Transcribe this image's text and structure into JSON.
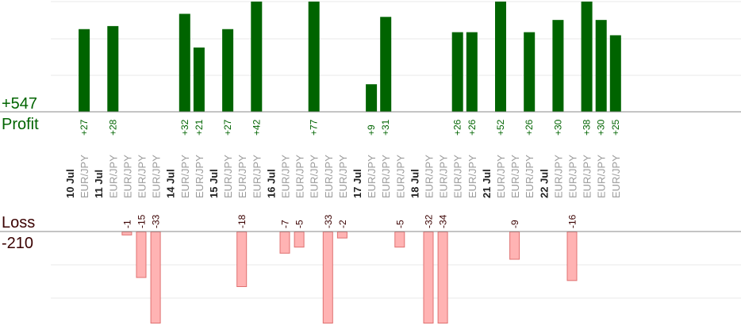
{
  "chart_data": {
    "type": "bar",
    "colors": {
      "profit_fill": "#006400",
      "loss_fill": "#ffb3b3",
      "loss_stroke": "#e07070",
      "profit_text": "#006400",
      "loss_text": "#3a0000",
      "axis": "#888888",
      "grid": "#e8e8e8",
      "day_label": "#222222",
      "pair_label": "#9a9a9a"
    },
    "profit_total": "+547",
    "profit_label": "Profit",
    "loss_label": "Loss",
    "loss_total": "-210",
    "profit_scale_max": 36,
    "loss_scale_max": 30,
    "columns": [
      {
        "day": "10 Jul",
        "pair": "",
        "value": null,
        "label": ""
      },
      {
        "day": "",
        "pair": "EUR/JPY",
        "value": 27,
        "label": "+27"
      },
      {
        "day": "11 Jul",
        "pair": "",
        "value": null,
        "label": ""
      },
      {
        "day": "",
        "pair": "EUR/JPY",
        "value": 28,
        "label": "+28"
      },
      {
        "day": "",
        "pair": "EUR/JPY",
        "value": -1,
        "label": "-1"
      },
      {
        "day": "",
        "pair": "EUR/JPY",
        "value": -15,
        "label": "-15"
      },
      {
        "day": "",
        "pair": "EUR/JPY",
        "value": -33,
        "label": "-33"
      },
      {
        "day": "14 Jul",
        "pair": "",
        "value": null,
        "label": ""
      },
      {
        "day": "",
        "pair": "EUR/JPY",
        "value": 32,
        "label": "+32"
      },
      {
        "day": "",
        "pair": "EUR/JPY",
        "value": 21,
        "label": "+21"
      },
      {
        "day": "15 Jul",
        "pair": "",
        "value": null,
        "label": ""
      },
      {
        "day": "",
        "pair": "EUR/JPY",
        "value": 27,
        "label": "+27"
      },
      {
        "day": "",
        "pair": "EUR/JPY",
        "value": -18,
        "label": "-18"
      },
      {
        "day": "",
        "pair": "EUR/JPY",
        "value": 42,
        "label": "+42"
      },
      {
        "day": "16 Jul",
        "pair": "",
        "value": null,
        "label": ""
      },
      {
        "day": "",
        "pair": "EUR/JPY",
        "value": -7,
        "label": "-7"
      },
      {
        "day": "",
        "pair": "EUR/JPY",
        "value": -5,
        "label": "-5"
      },
      {
        "day": "",
        "pair": "EUR/JPY",
        "value": 77,
        "label": "+77"
      },
      {
        "day": "",
        "pair": "EUR/JPY",
        "value": -33,
        "label": "-33"
      },
      {
        "day": "",
        "pair": "EUR/JPY",
        "value": -2,
        "label": "-2"
      },
      {
        "day": "17 Jul",
        "pair": "",
        "value": null,
        "label": ""
      },
      {
        "day": "",
        "pair": "EUR/JPY",
        "value": 9,
        "label": "+9"
      },
      {
        "day": "",
        "pair": "EUR/JPY",
        "value": 31,
        "label": "+31"
      },
      {
        "day": "",
        "pair": "EUR/JPY",
        "value": -5,
        "label": "-5"
      },
      {
        "day": "18 Jul",
        "pair": "",
        "value": null,
        "label": ""
      },
      {
        "day": "",
        "pair": "EUR/JPY",
        "value": -32,
        "label": "-32"
      },
      {
        "day": "",
        "pair": "EUR/JPY",
        "value": -34,
        "label": "-34"
      },
      {
        "day": "",
        "pair": "EUR/JPY",
        "value": 26,
        "label": "+26"
      },
      {
        "day": "",
        "pair": "EUR/JPY",
        "value": 26,
        "label": "+26"
      },
      {
        "day": "21 Jul",
        "pair": "",
        "value": null,
        "label": ""
      },
      {
        "day": "",
        "pair": "EUR/JPY",
        "value": 52,
        "label": "+52"
      },
      {
        "day": "",
        "pair": "EUR/JPY",
        "value": -9,
        "label": "-9"
      },
      {
        "day": "",
        "pair": "EUR/JPY",
        "value": 26,
        "label": "+26"
      },
      {
        "day": "22 Jul",
        "pair": "",
        "value": null,
        "label": ""
      },
      {
        "day": "",
        "pair": "EUR/JPY",
        "value": 30,
        "label": "+30"
      },
      {
        "day": "",
        "pair": "EUR/JPY",
        "value": -16,
        "label": "-16"
      },
      {
        "day": "",
        "pair": "EUR/JPY",
        "value": 38,
        "label": "+38"
      },
      {
        "day": "",
        "pair": "EUR/JPY",
        "value": 30,
        "label": "+30"
      },
      {
        "day": "",
        "pair": "EUR/JPY",
        "value": 25,
        "label": "+25"
      }
    ]
  }
}
